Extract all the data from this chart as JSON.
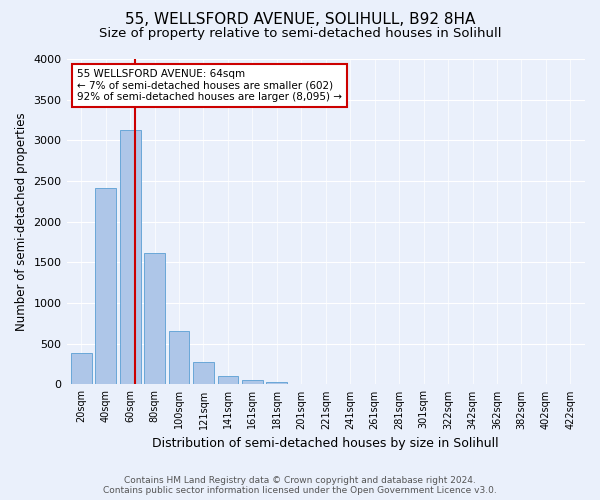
{
  "title": "55, WELLSFORD AVENUE, SOLIHULL, B92 8HA",
  "subtitle": "Size of property relative to semi-detached houses in Solihull",
  "xlabel": "Distribution of semi-detached houses by size in Solihull",
  "ylabel": "Number of semi-detached properties",
  "footer_line1": "Contains HM Land Registry data © Crown copyright and database right 2024.",
  "footer_line2": "Contains public sector information licensed under the Open Government Licence v3.0.",
  "categories": [
    "20sqm",
    "40sqm",
    "60sqm",
    "80sqm",
    "100sqm",
    "121sqm",
    "141sqm",
    "161sqm",
    "181sqm",
    "201sqm",
    "221sqm",
    "241sqm",
    "261sqm",
    "281sqm",
    "301sqm",
    "322sqm",
    "342sqm",
    "362sqm",
    "382sqm",
    "402sqm",
    "422sqm"
  ],
  "bar_values": [
    390,
    2420,
    3130,
    1620,
    660,
    270,
    100,
    50,
    30,
    10,
    5,
    5,
    2,
    2,
    1,
    1,
    0,
    0,
    0,
    0,
    0
  ],
  "bar_color": "#aec6e8",
  "bar_edge_color": "#5a9fd4",
  "annotation_title": "55 WELLSFORD AVENUE: 64sqm",
  "annotation_line1": "← 7% of semi-detached houses are smaller (602)",
  "annotation_line2": "92% of semi-detached houses are larger (8,095) →",
  "vline_color": "#cc0000",
  "annotation_box_color": "#cc0000",
  "ylim": [
    0,
    4000
  ],
  "yticks": [
    0,
    500,
    1000,
    1500,
    2000,
    2500,
    3000,
    3500,
    4000
  ],
  "bg_color": "#eaf0fb",
  "plot_bg_color": "#eaf0fb",
  "title_fontsize": 11,
  "subtitle_fontsize": 9.5,
  "xlabel_fontsize": 9,
  "ylabel_fontsize": 8.5,
  "vline_pos": 2.2
}
